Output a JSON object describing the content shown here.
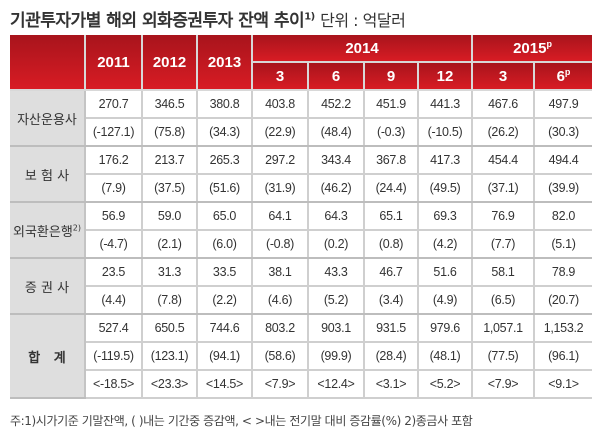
{
  "title": {
    "main": "기관투자가별 해외 외화증권투자 잔액 추이",
    "note": "1)",
    "unit": "단위 : 억달러"
  },
  "header": {
    "years": [
      "2011",
      "2012",
      "2013"
    ],
    "group2014": "2014",
    "group2015": "2015",
    "group2015_sup": "p",
    "months2014": [
      "3",
      "6",
      "9",
      "12"
    ],
    "months2015": [
      "3",
      "6"
    ],
    "months2015_sup": "p"
  },
  "rows": [
    {
      "label": "자산운용사",
      "sup": "",
      "values": [
        "270.7",
        "346.5",
        "380.8",
        "403.8",
        "452.2",
        "451.9",
        "441.3",
        "467.6",
        "497.9"
      ],
      "changes": [
        "(-127.1)",
        "(75.8)",
        "(34.3)",
        "(22.9)",
        "(48.4)",
        "(-0.3)",
        "(-10.5)",
        "(26.2)",
        "(30.3)"
      ]
    },
    {
      "label": "보 험 사",
      "sup": "",
      "values": [
        "176.2",
        "213.7",
        "265.3",
        "297.2",
        "343.4",
        "367.8",
        "417.3",
        "454.4",
        "494.4"
      ],
      "changes": [
        "(7.9)",
        "(37.5)",
        "(51.6)",
        "(31.9)",
        "(46.2)",
        "(24.4)",
        "(49.5)",
        "(37.1)",
        "(39.9)"
      ]
    },
    {
      "label": "외국환은행",
      "sup": "2)",
      "values": [
        "56.9",
        "59.0",
        "65.0",
        "64.1",
        "64.3",
        "65.1",
        "69.3",
        "76.9",
        "82.0"
      ],
      "changes": [
        "(-4.7)",
        "(2.1)",
        "(6.0)",
        "(-0.8)",
        "(0.2)",
        "(0.8)",
        "(4.2)",
        "(7.7)",
        "(5.1)"
      ]
    },
    {
      "label": "증 권 사",
      "sup": "",
      "values": [
        "23.5",
        "31.3",
        "33.5",
        "38.1",
        "43.3",
        "46.7",
        "51.6",
        "58.1",
        "78.9"
      ],
      "changes": [
        "(4.4)",
        "(7.8)",
        "(2.2)",
        "(4.6)",
        "(5.2)",
        "(3.4)",
        "(4.9)",
        "(6.5)",
        "(20.7)"
      ]
    }
  ],
  "total": {
    "label": "합   계",
    "values": [
      "527.4",
      "650.5",
      "744.6",
      "803.2",
      "903.1",
      "931.5",
      "979.6",
      "1,057.1",
      "1,153.2"
    ],
    "changes": [
      "(-119.5)",
      "(123.1)",
      "(94.1)",
      "(58.6)",
      "(99.9)",
      "(28.4)",
      "(48.1)",
      "(77.5)",
      "(96.1)"
    ],
    "rates": [
      "<-18.5>",
      "<23.3>",
      "<14.5>",
      "<7.9>",
      "<12.4>",
      "<3.1>",
      "<5.2>",
      "<7.9>",
      "<9.1>"
    ]
  },
  "footnote": "주:1)시가기준 기말잔액, (   )내는 기간중 증감액, <  >내는 전기말 대비 증감률(%)    2)종금사 포함",
  "colors": {
    "header": "#c8181f",
    "label_bg": "#dedede"
  }
}
